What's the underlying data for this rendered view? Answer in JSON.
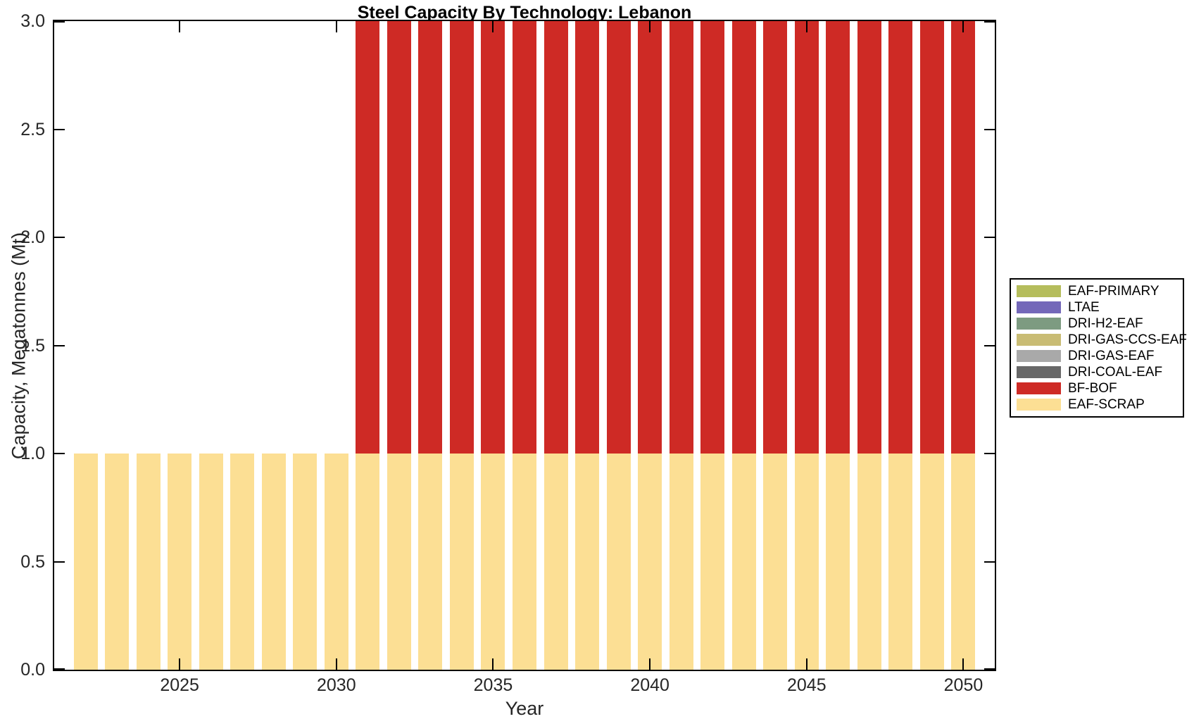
{
  "chart_data": {
    "type": "bar",
    "stacked": true,
    "title": "Steel Capacity By Technology: Lebanon",
    "xlabel": "Year",
    "ylabel": "Capacity, Megatonnes (Mt)",
    "xlim": [
      2021,
      2051
    ],
    "ylim": [
      0,
      3
    ],
    "grid": false,
    "tick_direction": "in",
    "legend_position": "right-outside",
    "axis_color": "#000000",
    "tick_label_color": "#262626",
    "background_color": "#ffffff",
    "x": [
      2022,
      2023,
      2024,
      2025,
      2026,
      2027,
      2028,
      2029,
      2030,
      2031,
      2032,
      2033,
      2034,
      2035,
      2036,
      2037,
      2038,
      2039,
      2040,
      2041,
      2042,
      2043,
      2044,
      2045,
      2046,
      2047,
      2048,
      2049,
      2050
    ],
    "series": [
      {
        "name": "EAF-PRIMARY",
        "color": "#b5bd5c",
        "values": [
          0,
          0,
          0,
          0,
          0,
          0,
          0,
          0,
          0,
          0,
          0,
          0,
          0,
          0,
          0,
          0,
          0,
          0,
          0,
          0,
          0,
          0,
          0,
          0,
          0,
          0,
          0,
          0,
          0
        ]
      },
      {
        "name": "LTAE",
        "color": "#7468b9",
        "values": [
          0,
          0,
          0,
          0,
          0,
          0,
          0,
          0,
          0,
          0,
          0,
          0,
          0,
          0,
          0,
          0,
          0,
          0,
          0,
          0,
          0,
          0,
          0,
          0,
          0,
          0,
          0,
          0,
          0
        ]
      },
      {
        "name": "DRI-H2-EAF",
        "color": "#7d9b81",
        "values": [
          0,
          0,
          0,
          0,
          0,
          0,
          0,
          0,
          0,
          0,
          0,
          0,
          0,
          0,
          0,
          0,
          0,
          0,
          0,
          0,
          0,
          0,
          0,
          0,
          0,
          0,
          0,
          0,
          0
        ]
      },
      {
        "name": "DRI-GAS-CCS-EAF",
        "color": "#c9bc74",
        "values": [
          0,
          0,
          0,
          0,
          0,
          0,
          0,
          0,
          0,
          0,
          0,
          0,
          0,
          0,
          0,
          0,
          0,
          0,
          0,
          0,
          0,
          0,
          0,
          0,
          0,
          0,
          0,
          0,
          0
        ]
      },
      {
        "name": "DRI-GAS-EAF",
        "color": "#a9a9a9",
        "values": [
          0,
          0,
          0,
          0,
          0,
          0,
          0,
          0,
          0,
          0,
          0,
          0,
          0,
          0,
          0,
          0,
          0,
          0,
          0,
          0,
          0,
          0,
          0,
          0,
          0,
          0,
          0,
          0,
          0
        ]
      },
      {
        "name": "DRI-COAL-EAF",
        "color": "#686868",
        "values": [
          0,
          0,
          0,
          0,
          0,
          0,
          0,
          0,
          0,
          0,
          0,
          0,
          0,
          0,
          0,
          0,
          0,
          0,
          0,
          0,
          0,
          0,
          0,
          0,
          0,
          0,
          0,
          0,
          0
        ]
      },
      {
        "name": "BF-BOF",
        "color": "#ce2a25",
        "values": [
          0,
          0,
          0,
          0,
          0,
          0,
          0,
          0,
          0,
          2,
          2,
          2,
          2,
          2,
          2,
          2,
          2,
          2,
          2,
          2,
          2,
          2,
          2,
          2,
          2,
          2,
          2,
          2,
          2
        ]
      },
      {
        "name": "EAF-SCRAP",
        "color": "#fcdf94",
        "values": [
          1,
          1,
          1,
          1,
          1,
          1,
          1,
          1,
          1,
          1,
          1,
          1,
          1,
          1,
          1,
          1,
          1,
          1,
          1,
          1,
          1,
          1,
          1,
          1,
          1,
          1,
          1,
          1,
          1
        ]
      }
    ],
    "stack_order_note": "series stack bottom-to-top in reverse of legend order (EAF-SCRAP at bottom, BF-BOF above it)",
    "xticks": [
      {
        "value": 2025,
        "label": "2025"
      },
      {
        "value": 2030,
        "label": "2030"
      },
      {
        "value": 2035,
        "label": "2035"
      },
      {
        "value": 2040,
        "label": "2040"
      },
      {
        "value": 2045,
        "label": "2045"
      },
      {
        "value": 2050,
        "label": "2050"
      }
    ],
    "yticks": [
      {
        "value": 0.0,
        "label": "0.0"
      },
      {
        "value": 0.5,
        "label": "0.5"
      },
      {
        "value": 1.0,
        "label": "1.0"
      },
      {
        "value": 1.5,
        "label": "1.5"
      },
      {
        "value": 2.0,
        "label": "2.0"
      },
      {
        "value": 2.5,
        "label": "2.5"
      },
      {
        "value": 3.0,
        "label": "3.0"
      }
    ]
  }
}
